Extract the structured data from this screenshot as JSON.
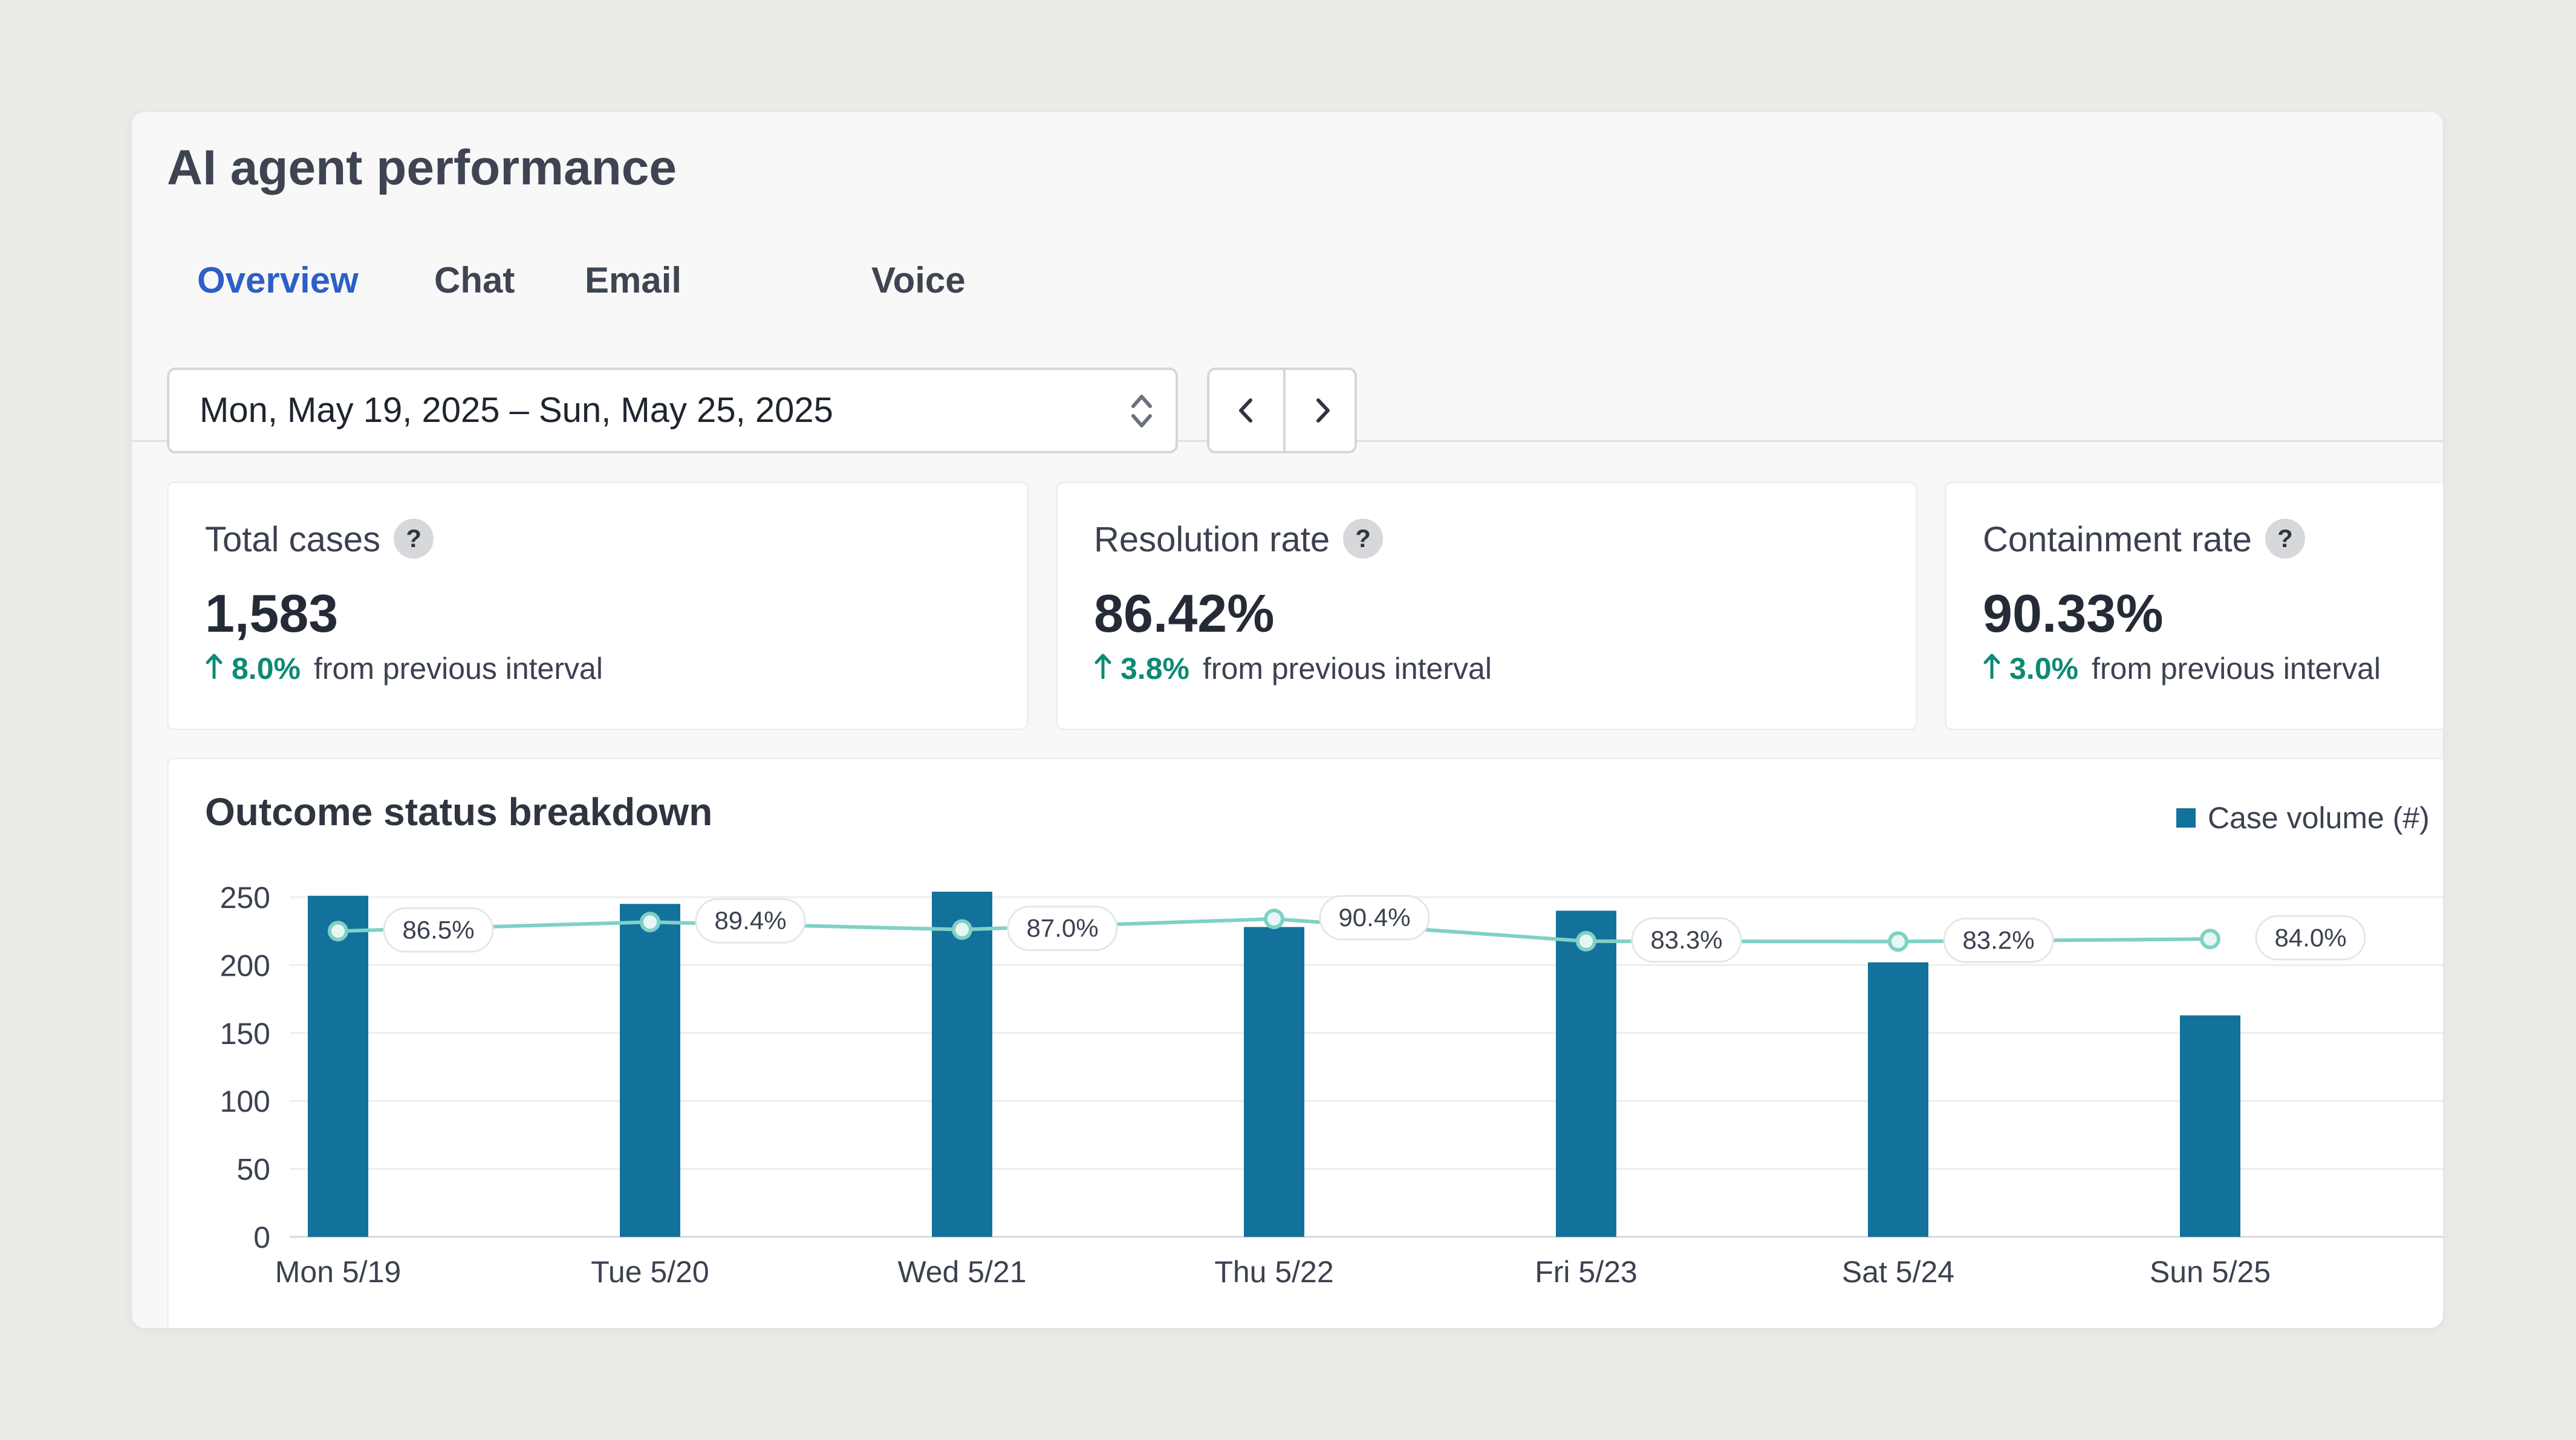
{
  "page": {
    "title": "AI agent performance"
  },
  "tabs": [
    {
      "label": "Overview",
      "active": true
    },
    {
      "label": "Chat",
      "active": false
    },
    {
      "label": "Email",
      "active": false
    },
    {
      "label": "Voice",
      "active": false
    }
  ],
  "date_range": {
    "value": "Mon, May 19, 2025 – Sun, May 25, 2025"
  },
  "kpis": [
    {
      "label": "Total cases",
      "value": "1,583",
      "change": "8.0%",
      "suffix": "from previous interval"
    },
    {
      "label": "Resolution rate",
      "value": "86.42%",
      "change": "3.8%",
      "suffix": "from previous interval"
    },
    {
      "label": "Containment rate",
      "value": "90.33%",
      "change": "3.0%",
      "suffix": "from previous interval"
    }
  ],
  "help_glyph": "?",
  "colors": {
    "accent": "#2c5fc7",
    "positive": "#0d8a73",
    "bar": "#13729b",
    "line": "#7fd1c5"
  },
  "chart_data": {
    "type": "bar",
    "title": "Outcome status breakdown",
    "legend": [
      "Case volume (#)"
    ],
    "legend_position": "top-right",
    "categories": [
      "Mon 5/19",
      "Tue 5/20",
      "Wed 5/21",
      "Thu 5/22",
      "Fri 5/23",
      "Sat 5/24",
      "Sun 5/25"
    ],
    "ylim": [
      0,
      250
    ],
    "yticks": [
      0,
      50,
      100,
      150,
      200,
      250
    ],
    "grid": true,
    "series": [
      {
        "name": "Case volume (#)",
        "type": "bar",
        "values": [
          251,
          245,
          254,
          228,
          240,
          202,
          163
        ]
      },
      {
        "type": "line",
        "values": [
          86.5,
          89.4,
          87.0,
          90.4,
          83.3,
          83.2,
          84.0
        ],
        "labels": [
          "86.5%",
          "89.4%",
          "87.0%",
          "90.4%",
          "83.3%",
          "83.2%",
          "84.0%"
        ]
      }
    ]
  }
}
